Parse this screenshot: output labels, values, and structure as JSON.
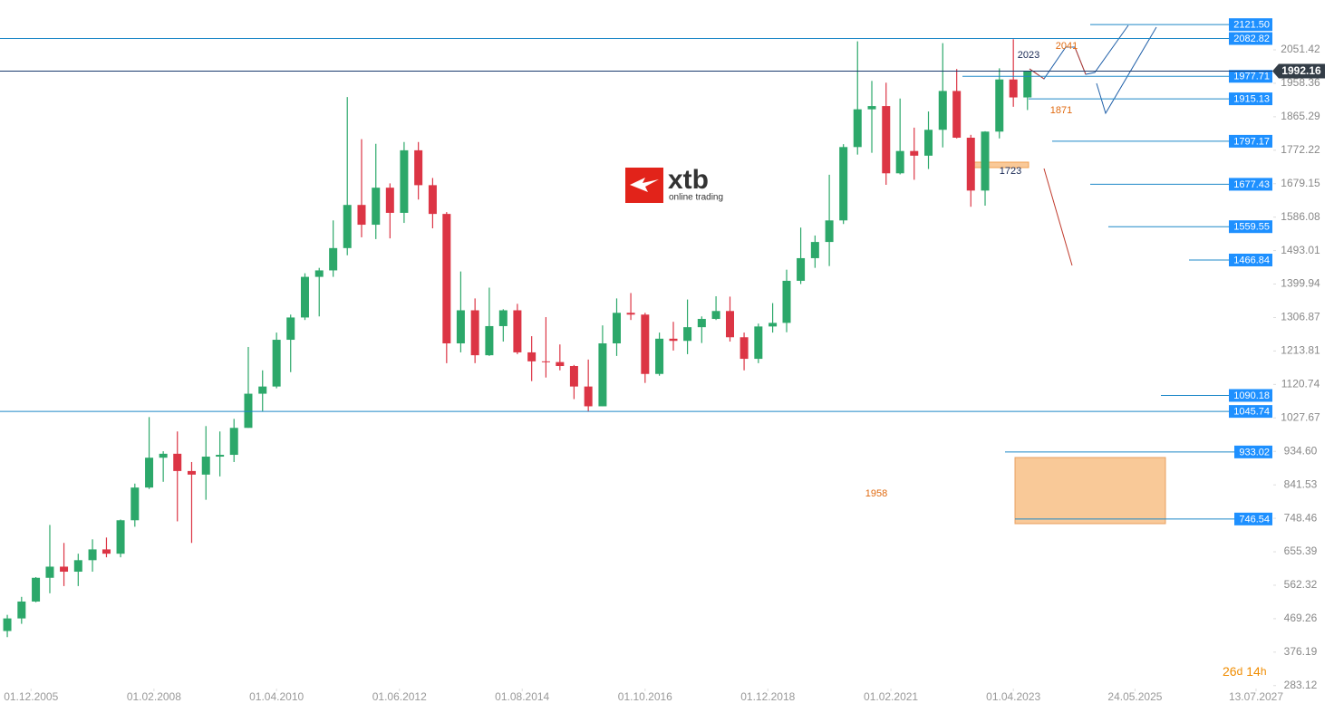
{
  "brand": {
    "name": "xtb",
    "tagline": "online trading"
  },
  "countdown": [
    "26",
    "d",
    "14",
    "h"
  ],
  "chart_data": {
    "type": "candlestick",
    "x": [
      "2005-07",
      "2005-10",
      "2006-01",
      "2006-04",
      "2006-07",
      "2006-10",
      "2007-01",
      "2007-04",
      "2007-07",
      "2007-10",
      "2008-01",
      "2008-04",
      "2008-07",
      "2008-10",
      "2009-01",
      "2009-04",
      "2009-07",
      "2009-10",
      "2010-01",
      "2010-04",
      "2010-07",
      "2010-10",
      "2011-01",
      "2011-04",
      "2011-07",
      "2011-10",
      "2012-01",
      "2012-04",
      "2012-07",
      "2012-10",
      "2013-01",
      "2013-04",
      "2013-07",
      "2013-10",
      "2014-01",
      "2014-04",
      "2014-07",
      "2014-10",
      "2015-01",
      "2015-04",
      "2015-07",
      "2015-10",
      "2016-01",
      "2016-04",
      "2016-07",
      "2016-10",
      "2017-01",
      "2017-04",
      "2017-07",
      "2017-10",
      "2018-01",
      "2018-04",
      "2018-07",
      "2018-10",
      "2019-01",
      "2019-04",
      "2019-07",
      "2019-10",
      "2020-01",
      "2020-04",
      "2020-07",
      "2020-10",
      "2021-01",
      "2021-04",
      "2021-07",
      "2021-10",
      "2022-01",
      "2022-04",
      "2022-07",
      "2022-10",
      "2023-01",
      "2023-04",
      "2023-07"
    ],
    "open": [
      435,
      470,
      517,
      583,
      614,
      600,
      632,
      662,
      650,
      743,
      834,
      917,
      928,
      880,
      870,
      920,
      925,
      1000,
      1095,
      1115,
      1245,
      1307,
      1420,
      1438,
      1500,
      1620,
      1565,
      1668,
      1598,
      1772,
      1675,
      1595,
      1235,
      1327,
      1202,
      1283,
      1327,
      1210,
      1185,
      1183,
      1172,
      1115,
      1060,
      1235,
      1320,
      1315,
      1150,
      1248,
      1242,
      1280,
      1303,
      1325,
      1252,
      1192,
      1282,
      1292,
      1409,
      1472,
      1517,
      1577,
      1781,
      1886,
      1895,
      1708,
      1770,
      1757,
      1829,
      1937,
      1807,
      1660,
      1824,
      1969,
      1919
    ],
    "high": [
      480,
      530,
      585,
      730,
      680,
      650,
      690,
      695,
      745,
      845,
      1030,
      935,
      990,
      905,
      1005,
      990,
      1025,
      1225,
      1160,
      1265,
      1315,
      1430,
      1445,
      1577,
      1920,
      1803,
      1790,
      1680,
      1795,
      1795,
      1695,
      1600,
      1435,
      1360,
      1390,
      1330,
      1345,
      1255,
      1308,
      1232,
      1175,
      1190,
      1285,
      1360,
      1375,
      1320,
      1265,
      1295,
      1357,
      1310,
      1366,
      1365,
      1265,
      1290,
      1347,
      1440,
      1557,
      1535,
      1704,
      1789,
      2075,
      1965,
      1960,
      1916,
      1835,
      1880,
      2070,
      1998,
      1815,
      1825,
      2000,
      2081,
      1985
    ],
    "low": [
      418,
      455,
      515,
      540,
      560,
      560,
      600,
      640,
      640,
      725,
      830,
      850,
      740,
      680,
      800,
      865,
      905,
      1000,
      1045,
      1110,
      1155,
      1300,
      1310,
      1420,
      1480,
      1530,
      1525,
      1527,
      1570,
      1635,
      1555,
      1180,
      1210,
      1180,
      1200,
      1240,
      1205,
      1130,
      1140,
      1160,
      1080,
      1045,
      1060,
      1200,
      1300,
      1125,
      1145,
      1215,
      1205,
      1236,
      1300,
      1240,
      1160,
      1180,
      1265,
      1266,
      1400,
      1445,
      1450,
      1567,
      1760,
      1765,
      1676,
      1705,
      1690,
      1720,
      1780,
      1805,
      1615,
      1618,
      1805,
      1893,
      1884
    ],
    "close": [
      470,
      517,
      583,
      614,
      600,
      632,
      662,
      650,
      743,
      834,
      917,
      928,
      880,
      870,
      920,
      925,
      1000,
      1095,
      1115,
      1245,
      1307,
      1420,
      1438,
      1500,
      1620,
      1565,
      1668,
      1598,
      1772,
      1675,
      1595,
      1235,
      1327,
      1202,
      1283,
      1327,
      1210,
      1185,
      1183,
      1172,
      1115,
      1060,
      1235,
      1320,
      1315,
      1150,
      1248,
      1242,
      1280,
      1303,
      1325,
      1252,
      1192,
      1282,
      1292,
      1409,
      1472,
      1517,
      1577,
      1781,
      1886,
      1895,
      1708,
      1770,
      1757,
      1829,
      1937,
      1807,
      1660,
      1824,
      1969,
      1919,
      1992
    ],
    "up_color": "#2ca86a",
    "down_color": "#dc3545",
    "xlim": [
      "2005-05-15",
      "2027-11-01"
    ],
    "xticks": [
      {
        "value": "2005-12-01",
        "label": "01.12.2005"
      },
      {
        "value": "2008-02-01",
        "label": "01.02.2008"
      },
      {
        "value": "2010-04-01",
        "label": "01.04.2010"
      },
      {
        "value": "2012-06-01",
        "label": "01.06.2012"
      },
      {
        "value": "2014-08-01",
        "label": "01.08.2014"
      },
      {
        "value": "2016-10-01",
        "label": "01.10.2016"
      },
      {
        "value": "2018-12-01",
        "label": "01.12.2018"
      },
      {
        "value": "2021-02-01",
        "label": "01.02.2021"
      },
      {
        "value": "2023-04-01",
        "label": "01.04.2023"
      },
      {
        "value": "2025-05-24",
        "label": "24.05.2025"
      },
      {
        "value": "2027-07-13",
        "label": "13.07.2027"
      }
    ],
    "ylim": [
      275,
      2190
    ],
    "yticks": [
      2051.42,
      1958.36,
      1865.29,
      1772.22,
      1679.15,
      1586.08,
      1493.01,
      1399.94,
      1306.87,
      1213.81,
      1120.74,
      1027.67,
      {
        "value": 934.6,
        "label": "934.60"
      },
      841.53,
      748.46,
      655.39,
      562.32,
      469.26,
      376.19,
      283.12
    ],
    "current_price": 1992.16,
    "levels": [
      {
        "value": 2121.5,
        "label": "2121.50"
      },
      2082.82,
      1977.71,
      1915.13,
      1797.17,
      1677.43,
      1559.55,
      1466.84,
      1090.18,
      1045.74,
      933.02,
      746.54
    ],
    "annotations": [
      "2023",
      "2041",
      "1871",
      "1723",
      "1958"
    ]
  }
}
